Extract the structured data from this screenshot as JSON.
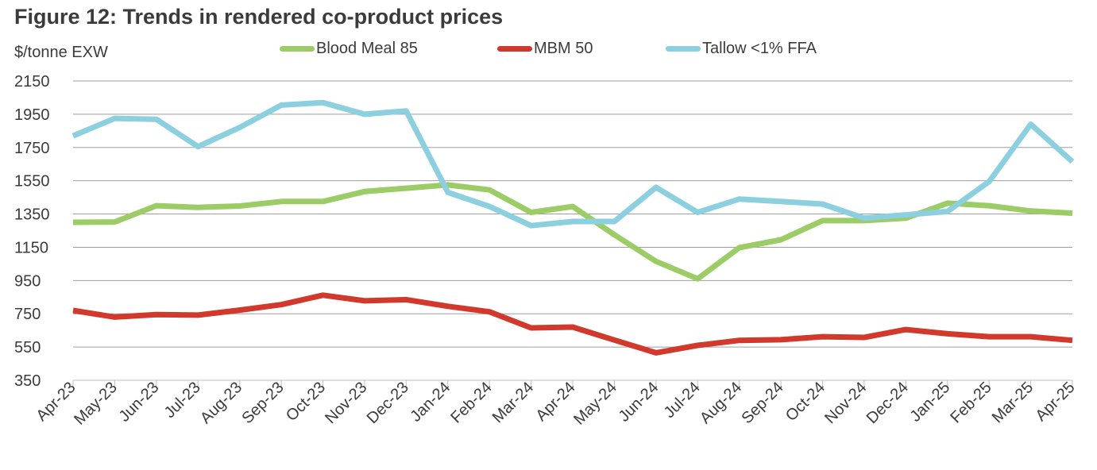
{
  "title": "Figure 12: Trends in rendered co-product prices",
  "chart_data": {
    "type": "line",
    "title": "Figure 12: Trends in rendered co-product prices",
    "ylabel": "$/tonne EXW",
    "xlabel": "",
    "ylim": [
      350,
      2150
    ],
    "yticks": [
      2150,
      1950,
      1750,
      1550,
      1350,
      1150,
      950,
      750,
      550,
      350
    ],
    "grid": "horizontal",
    "legend_position": "top",
    "categories": [
      "Apr-23",
      "May-23",
      "Jun-23",
      "Jul-23",
      "Aug-23",
      "Sep-23",
      "Oct-23",
      "Nov-23",
      "Dec-23",
      "Jan-24",
      "Feb-24",
      "Mar-24",
      "Apr-24",
      "May-24",
      "Jun-24",
      "Jul-24",
      "Aug-24",
      "Sep-24",
      "Oct-24",
      "Nov-24",
      "Dec-24",
      "Jan-25",
      "Feb-25",
      "Mar-25",
      "Apr-25"
    ],
    "series": [
      {
        "name": "Blood Meal 85",
        "color": "#9ccc65",
        "values": [
          1300,
          1302,
          1400,
          1390,
          1398,
          1425,
          1425,
          1485,
          1505,
          1525,
          1495,
          1360,
          1395,
          1225,
          1065,
          960,
          1148,
          1195,
          1310,
          1310,
          1325,
          1415,
          1400,
          1368,
          1355
        ]
      },
      {
        "name": "MBM 50",
        "color": "#d0392b",
        "values": [
          770,
          730,
          745,
          742,
          772,
          805,
          862,
          828,
          835,
          795,
          762,
          665,
          670,
          592,
          515,
          560,
          590,
          594,
          612,
          608,
          655,
          630,
          612,
          612,
          590
        ]
      },
      {
        "name": "Tallow <1% FFA",
        "color": "#8ccfde",
        "values": [
          1820,
          1925,
          1920,
          1755,
          1870,
          2005,
          2020,
          1950,
          1970,
          1480,
          1395,
          1280,
          1305,
          1305,
          1510,
          1360,
          1440,
          1425,
          1410,
          1325,
          1345,
          1365,
          1545,
          1890,
          1665
        ]
      }
    ]
  }
}
